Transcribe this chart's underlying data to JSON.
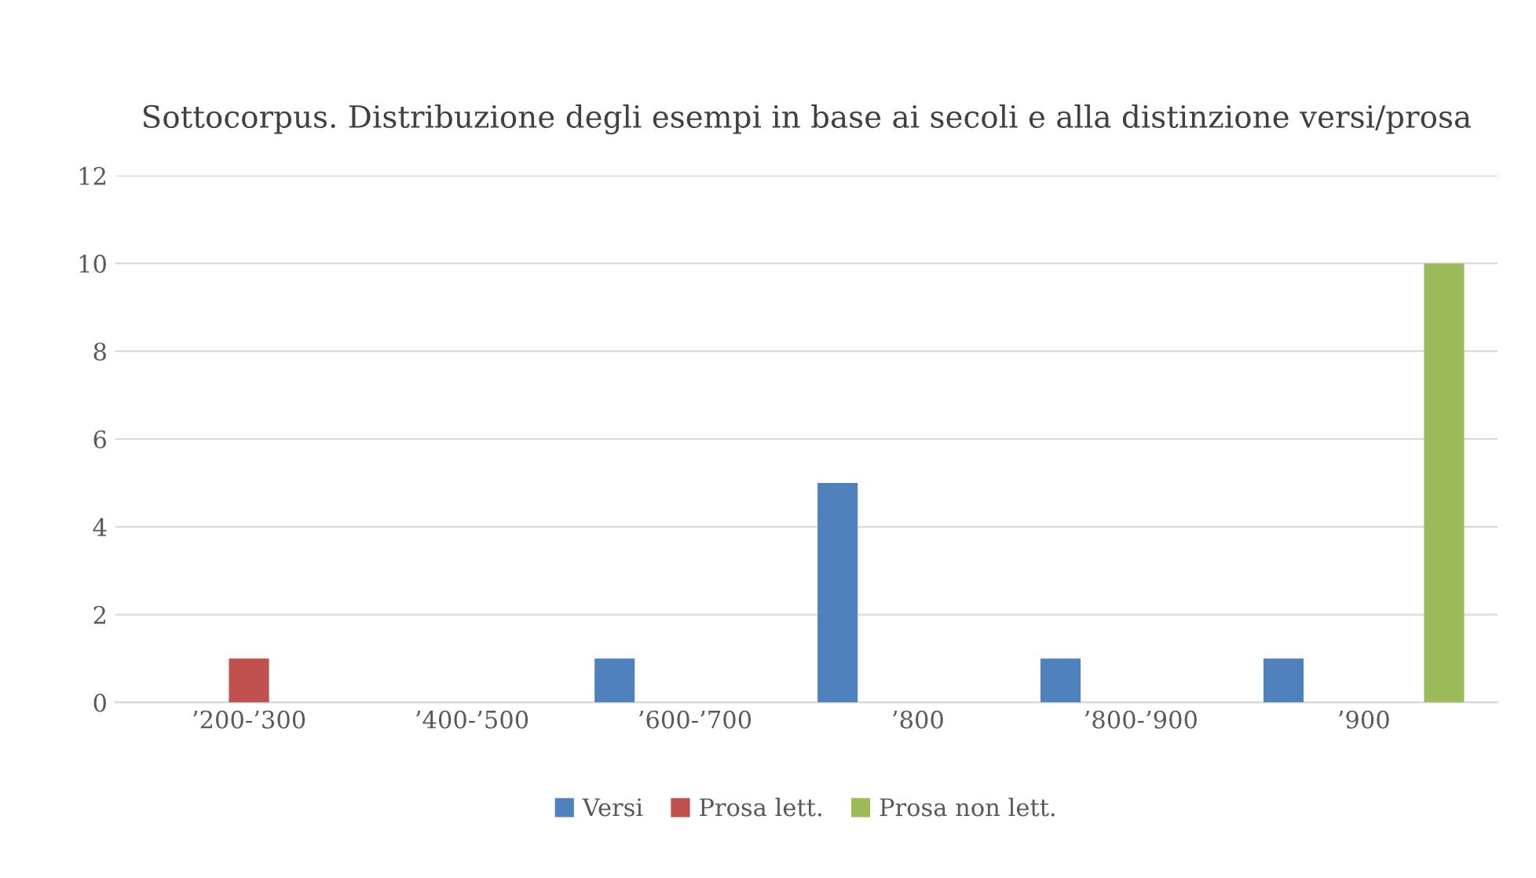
{
  "chart_data": {
    "type": "bar",
    "title": "Sottocorpus. Distribuzione degli esempi in base ai secoli e alla distinzione versi/prosa",
    "categories": [
      "’200-’300",
      "’400-’500",
      "’600-’700",
      "’800",
      "’800-’900",
      "’900"
    ],
    "series": [
      {
        "name": "Versi",
        "color": "#4f81bd",
        "values": [
          null,
          null,
          1,
          5,
          1,
          1
        ]
      },
      {
        "name": "Prosa lett.",
        "color": "#c0504d",
        "values": [
          1,
          null,
          null,
          null,
          null,
          null
        ]
      },
      {
        "name": "Prosa non lett.",
        "color": "#9bbb59",
        "values": [
          null,
          null,
          null,
          null,
          null,
          10
        ]
      }
    ],
    "ylim": [
      0,
      12
    ],
    "yticks": [
      0,
      2,
      4,
      6,
      8,
      10,
      12
    ],
    "grid": "y",
    "legend": "bottom"
  }
}
